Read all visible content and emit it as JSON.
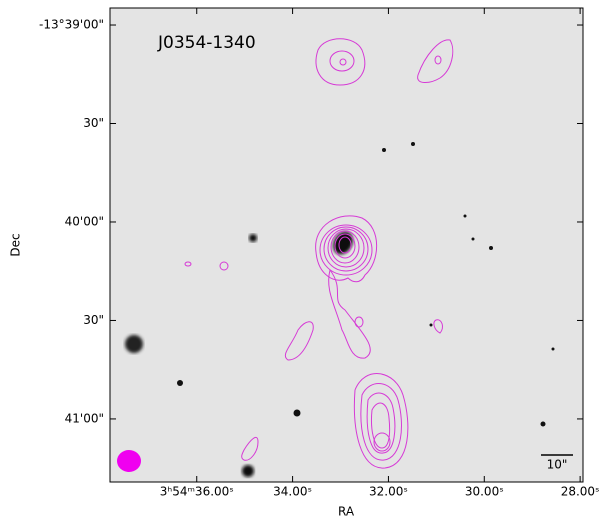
{
  "chart_data": {
    "type": "image",
    "title": "J0354-1340",
    "xlabel": "RA",
    "ylabel": "Dec",
    "scale_bar_label": "10\"",
    "xlim": [
      37.81,
      27.94
    ],
    "xticks": [
      {
        "value": 36,
        "label": "3ʰ54ᵐ36.00ˢ"
      },
      {
        "value": 34,
        "label": "34.00ˢ"
      },
      {
        "value": 32,
        "label": "32.00ˢ"
      },
      {
        "value": 30,
        "label": "30.00ˢ"
      },
      {
        "value": 28,
        "label": "28.00ˢ"
      }
    ],
    "ylim": [
      -13.64856,
      -13.68867
    ],
    "yticks": [
      {
        "value": -13.65,
        "label": "-13°39'00\""
      },
      {
        "value": -13.658333,
        "label": "30\""
      },
      {
        "value": -13.666667,
        "label": "40'00\""
      },
      {
        "value": -13.675,
        "label": "30\""
      },
      {
        "value": -13.683333,
        "label": "41'00\""
      }
    ],
    "contour_color": "#d63ad6"
  }
}
